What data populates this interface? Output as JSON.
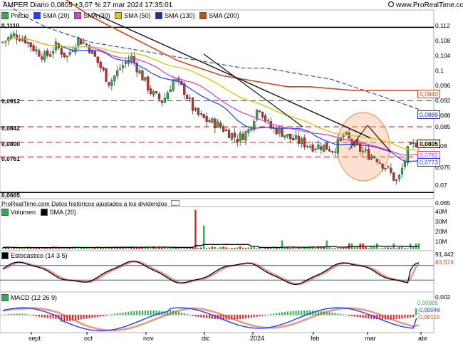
{
  "header": {
    "title": "AMPER Diario 0,0805 +3,07 % 27 mar 2024 17:35:01",
    "site": "www.ProRealTime.com"
  },
  "price_panel": {
    "legend_precio": "Precio",
    "smas": [
      {
        "label": "SMA (20)",
        "color": "#1f3fff"
      },
      {
        "label": "SMA (30)",
        "color": "#e535d0"
      },
      {
        "label": "SMA (50)",
        "color": "#d4c81c"
      },
      {
        "label": "SMA (130)",
        "color": "#1a2ea6"
      },
      {
        "label": "SMA (200)",
        "color": "#c8491a"
      }
    ],
    "levels": [
      "0,1110",
      "0,0912",
      "0,0842",
      "0,0800",
      "0,0761",
      "0,0665"
    ],
    "axis_ticks": [
      "0,112",
      "0,108",
      "0,104",
      "0,1",
      "0,096",
      "0,092",
      "0,088",
      "0,085",
      "0,08",
      "0,075",
      "0,07",
      "0,065"
    ],
    "badges": {
      "sma200": "0,0940",
      "sma130": "0,0889",
      "price": "0,0805",
      "sma30": "0,0782",
      "sma20": "0,0773"
    },
    "footnote": "ProRealTime.com Datos históricos ajustados a los dividendos"
  },
  "volume_panel": {
    "label": "Volumen",
    "sma_label": "SMA (20)",
    "axis_ticks": [
      "40M",
      "30M",
      "20M",
      "10M",
      "0"
    ]
  },
  "stoch_panel": {
    "label": "Estocástico (14 3 5)",
    "values": [
      "91,442",
      "83,574"
    ]
  },
  "macd_panel": {
    "label": "MACD (12 26 9)",
    "axis_ticks": [
      "0,002",
      "0,001",
      "0",
      "-0,001",
      "-0,002"
    ],
    "badges": [
      "0,00065",
      "-0,00046",
      "-0,00110"
    ]
  },
  "x_axis": [
    "sept",
    "oct",
    "nov",
    "dic",
    "2024",
    "feb",
    "mar",
    "abr"
  ],
  "chart_data": {
    "type": "candlestick",
    "title": "AMPER Diario 0,0805 +3,07 % 27 mar 2024 17:35:01",
    "ylim": [
      0.065,
      0.113
    ],
    "approx_series": [
      {
        "name": "Precio",
        "values": [
          0.107,
          0.109,
          0.108,
          0.105,
          0.103,
          0.106,
          0.103,
          0.108,
          0.106,
          0.101,
          0.096,
          0.1,
          0.103,
          0.098,
          0.093,
          0.091,
          0.097,
          0.094,
          0.088,
          0.086,
          0.085,
          0.083,
          0.081,
          0.083,
          0.09,
          0.084,
          0.083,
          0.081,
          0.08,
          0.079,
          0.079,
          0.078,
          0.082,
          0.079,
          0.077,
          0.076,
          0.073,
          0.069,
          0.078,
          0.0805
        ]
      },
      {
        "name": "SMA (200)",
        "values": [
          0.13,
          0.126,
          0.122,
          0.118,
          0.114,
          0.111,
          0.108,
          0.105,
          0.102,
          0.1,
          0.098,
          0.097,
          0.096,
          0.095,
          0.095,
          0.0945,
          0.094,
          0.094,
          0.094,
          0.094
        ]
      },
      {
        "name": "SMA (130)",
        "values": [
          0.118,
          0.114,
          0.111,
          0.109,
          0.107,
          0.106,
          0.105,
          0.104,
          0.103,
          0.102,
          0.101,
          0.1,
          0.1,
          0.099,
          0.098,
          0.097,
          0.095,
          0.093,
          0.091,
          0.0889
        ]
      },
      {
        "name": "SMA (50)",
        "values": [
          0.1,
          0.102,
          0.104,
          0.104,
          0.103,
          0.1,
          0.097,
          0.094,
          0.092,
          0.09,
          0.088,
          0.087,
          0.086,
          0.085,
          0.084,
          0.083,
          0.082,
          0.081,
          0.08,
          0.079
        ]
      }
    ]
  }
}
